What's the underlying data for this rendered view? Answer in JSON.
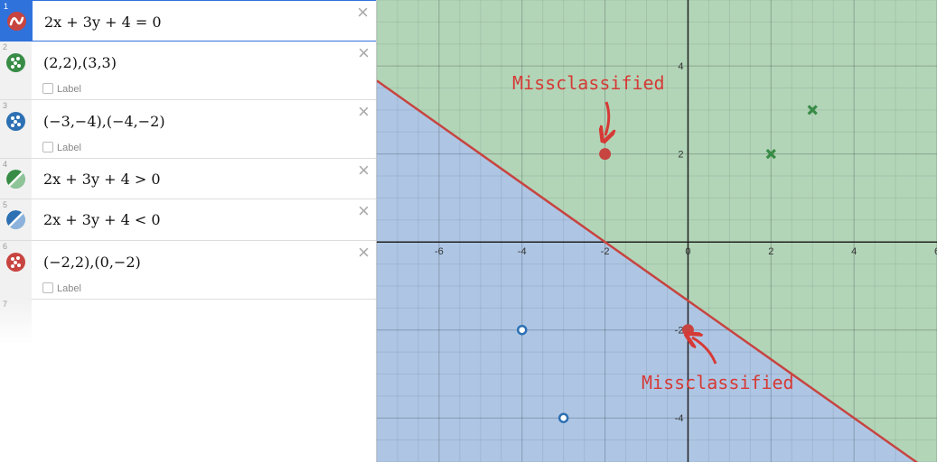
{
  "expressions": [
    {
      "num": "1",
      "text": "2x + 3y + 4 = 0",
      "color": "#c74440"
    },
    {
      "num": "2",
      "text": "(2,2),(3,3)",
      "color": "#388c46",
      "label": "Label"
    },
    {
      "num": "3",
      "text": "(−3,−4),(−4,−2)",
      "color": "#2d70b3",
      "label": "Label"
    },
    {
      "num": "4",
      "text": "2x + 3y + 4  > 0",
      "color": "#388c46"
    },
    {
      "num": "5",
      "text": "2x + 3y + 4  < 0",
      "color": "#2d70b3"
    },
    {
      "num": "6",
      "text": "(−2,2),(0,−2)",
      "color": "#c74440",
      "label": "Label"
    },
    {
      "num": "7"
    }
  ],
  "close_glyph": "×",
  "graph": {
    "x_range": [
      -7.5,
      6
    ],
    "y_range": [
      -5,
      5.5
    ],
    "x_ticks": [
      "-6",
      "-4",
      "-2",
      "0",
      "2",
      "4",
      "6"
    ],
    "y_ticks": [
      "4",
      "2",
      "-2",
      "-4"
    ],
    "green_region": "#b2d5b8",
    "blue_region": "#aec6e4",
    "line_color": "#c74440",
    "green_points": [
      [
        2,
        2
      ],
      [
        3,
        3
      ]
    ],
    "blue_points": [
      [
        -3,
        -4
      ],
      [
        -4,
        -2
      ]
    ],
    "red_points": [
      [
        -2,
        2
      ],
      [
        0,
        -2
      ]
    ],
    "annotation_text": "Missclassified",
    "annotation_color": "#d63a36"
  }
}
